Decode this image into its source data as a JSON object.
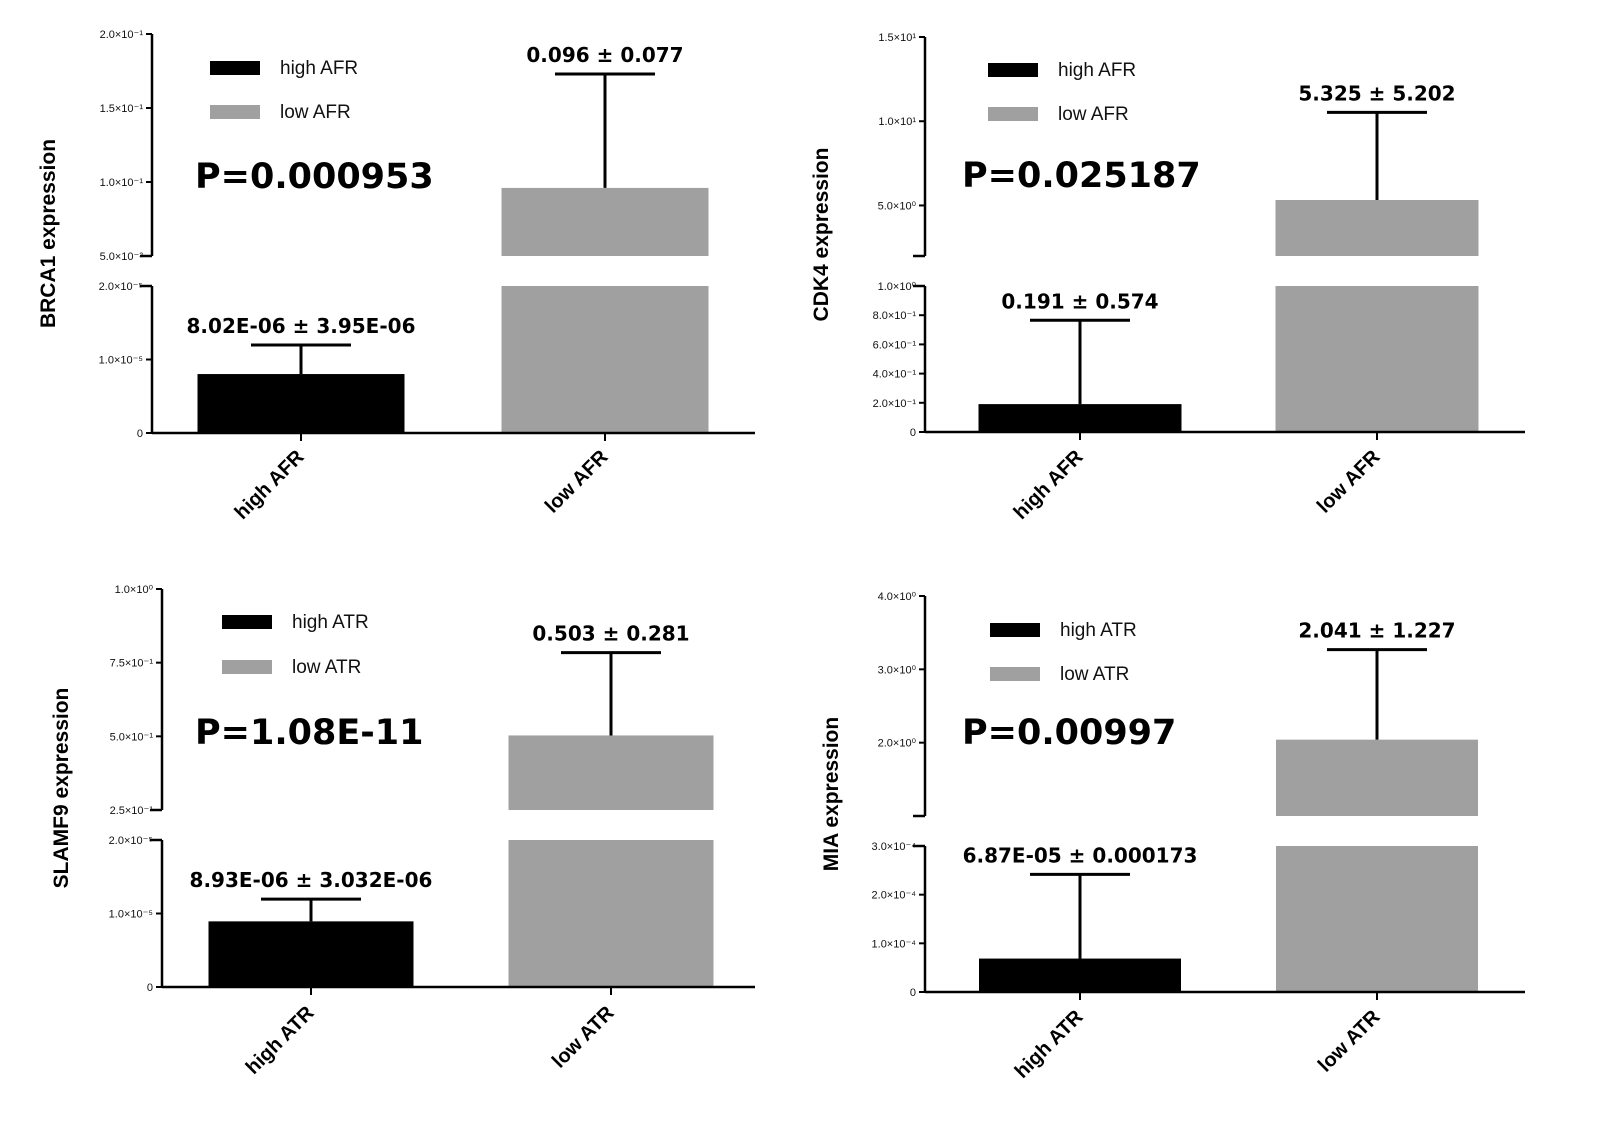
{
  "chart_data": [
    {
      "type": "bar",
      "ylabel": "BRCA1 expression",
      "categories": [
        "high AFR",
        "low AFR"
      ],
      "series": [
        {
          "name": "high AFR",
          "color": "#000000",
          "value": 8.02e-06,
          "sd": 3.95e-06,
          "label": "8.02E-06 ± 3.95E-06"
        },
        {
          "name": "low AFR",
          "color": "#a0a0a0",
          "value": 0.096,
          "sd": 0.077,
          "label": "0.096 ± 0.077"
        }
      ],
      "p_value": "P=0.000953",
      "lower_segment": {
        "range": [
          0,
          2e-05
        ],
        "ticks": [
          {
            "v": 0,
            "label": "0"
          },
          {
            "v": 1e-05,
            "label": "1.0×10⁻⁵"
          },
          {
            "v": 2e-05,
            "label": "2.0×10⁻⁵"
          }
        ]
      },
      "upper_segment": {
        "range": [
          0.05,
          0.2
        ],
        "ticks": [
          {
            "v": 0.05,
            "label": "5.0×10⁻²"
          },
          {
            "v": 0.1,
            "label": "1.0×10⁻¹"
          },
          {
            "v": 0.15,
            "label": "1.5×10⁻¹"
          },
          {
            "v": 0.2,
            "label": "2.0×10⁻¹"
          }
        ]
      }
    },
    {
      "type": "bar",
      "ylabel": "CDK4 expression",
      "categories": [
        "high AFR",
        "low AFR"
      ],
      "series": [
        {
          "name": "high AFR",
          "color": "#000000",
          "value": 0.191,
          "sd": 0.574,
          "label": "0.191 ± 0.574"
        },
        {
          "name": "low AFR",
          "color": "#a0a0a0",
          "value": 5.325,
          "sd": 5.202,
          "label": "5.325 ± 5.202"
        }
      ],
      "p_value": "P=0.025187",
      "lower_segment": {
        "range": [
          0,
          1.0
        ],
        "ticks": [
          {
            "v": 0,
            "label": "0"
          },
          {
            "v": 0.2,
            "label": "2.0×10⁻¹"
          },
          {
            "v": 0.4,
            "label": "4.0×10⁻¹"
          },
          {
            "v": 0.6,
            "label": "6.0×10⁻¹"
          },
          {
            "v": 0.8,
            "label": "8.0×10⁻¹"
          },
          {
            "v": 1.0,
            "label": "1.0×10⁰"
          }
        ]
      },
      "upper_segment": {
        "range": [
          2.0,
          15.0
        ],
        "ticks": [
          {
            "v": 5,
            "label": "5.0×10⁰"
          },
          {
            "v": 10,
            "label": "1.0×10¹"
          },
          {
            "v": 15,
            "label": "1.5×10¹"
          }
        ]
      }
    },
    {
      "type": "bar",
      "ylabel": "SLAMF9 expression",
      "categories": [
        "high ATR",
        "low ATR"
      ],
      "series": [
        {
          "name": "high ATR",
          "color": "#000000",
          "value": 8.93e-06,
          "sd": 3.032e-06,
          "label": "8.93E-06 ± 3.032E-06"
        },
        {
          "name": "low ATR",
          "color": "#a0a0a0",
          "value": 0.503,
          "sd": 0.281,
          "label": "0.503 ± 0.281"
        }
      ],
      "p_value": "P=1.08E-11",
      "lower_segment": {
        "range": [
          0,
          2e-05
        ],
        "ticks": [
          {
            "v": 0,
            "label": "0"
          },
          {
            "v": 1e-05,
            "label": "1.0×10⁻⁵"
          },
          {
            "v": 2e-05,
            "label": "2.0×10⁻⁵"
          }
        ]
      },
      "upper_segment": {
        "range": [
          0.25,
          1.0
        ],
        "ticks": [
          {
            "v": 0.25,
            "label": "2.5×10⁻¹"
          },
          {
            "v": 0.5,
            "label": "5.0×10⁻¹"
          },
          {
            "v": 0.75,
            "label": "7.5×10⁻¹"
          },
          {
            "v": 1.0,
            "label": "1.0×10⁰"
          }
        ]
      }
    },
    {
      "type": "bar",
      "ylabel": "MIA expression",
      "categories": [
        "high ATR",
        "low ATR"
      ],
      "series": [
        {
          "name": "high ATR",
          "color": "#000000",
          "value": 6.87e-05,
          "sd": 0.000173,
          "label": "6.87E-05 ± 0.000173"
        },
        {
          "name": "low ATR",
          "color": "#a0a0a0",
          "value": 2.041,
          "sd": 1.227,
          "label": "2.041 ± 1.227"
        }
      ],
      "p_value": "P=0.00997",
      "lower_segment": {
        "range": [
          0,
          0.0003
        ],
        "ticks": [
          {
            "v": 0,
            "label": "0"
          },
          {
            "v": 0.0001,
            "label": "1.0×10⁻⁴"
          },
          {
            "v": 0.0002,
            "label": "2.0×10⁻⁴"
          },
          {
            "v": 0.0003,
            "label": "3.0×10⁻⁴"
          }
        ]
      },
      "upper_segment": {
        "range": [
          1.0,
          4.0
        ],
        "ticks": [
          {
            "v": 2,
            "label": "2.0×10⁰"
          },
          {
            "v": 3,
            "label": "3.0×10⁰"
          },
          {
            "v": 4,
            "label": "4.0×10⁰"
          }
        ]
      }
    }
  ]
}
